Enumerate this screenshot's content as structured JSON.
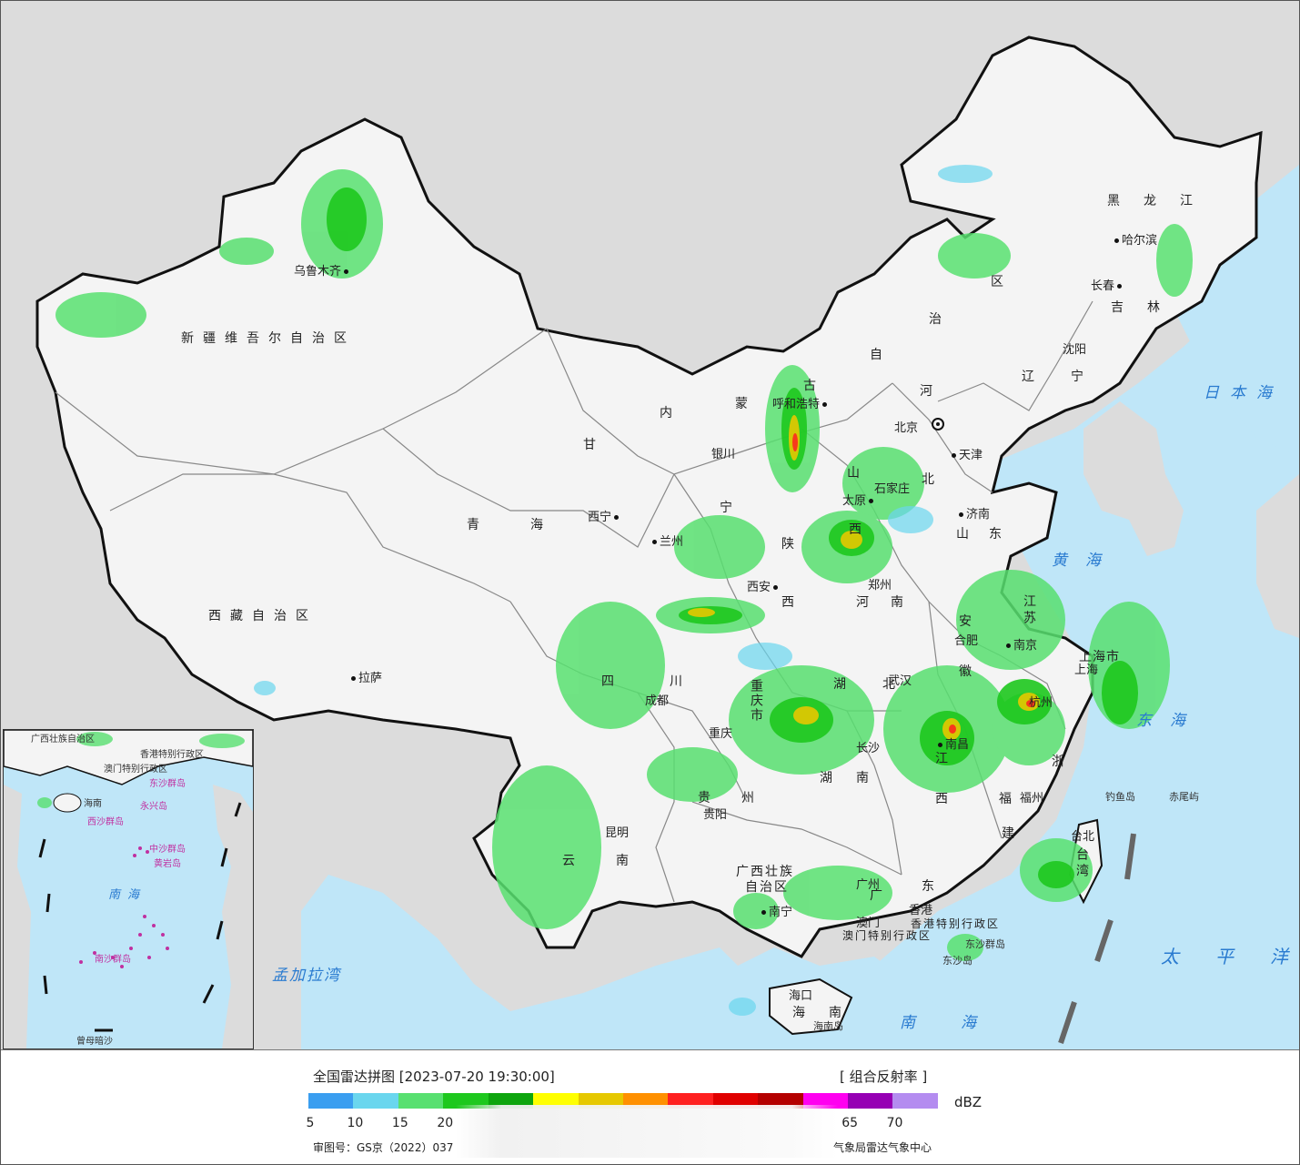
{
  "map": {
    "provinces": [
      {
        "name": "新疆维吾尔自治区",
        "key": "xinjiang"
      },
      {
        "name": "西藏自治区",
        "key": "xizang"
      },
      {
        "name": "青海",
        "key": "qinghai"
      },
      {
        "name": "甘",
        "key": "gansu"
      },
      {
        "name": "内",
        "key": "neimeng1"
      },
      {
        "name": "蒙",
        "key": "neimeng2"
      },
      {
        "name": "古",
        "key": "neimeng3"
      },
      {
        "name": "自",
        "key": "neimeng4"
      },
      {
        "name": "治",
        "key": "neimeng5"
      },
      {
        "name": "区",
        "key": "neimeng6"
      },
      {
        "name": "黑龙江",
        "key": "heilongjiang"
      },
      {
        "name": "吉林",
        "key": "jilin"
      },
      {
        "name": "辽宁",
        "key": "liaoning"
      },
      {
        "name": "河",
        "key": "hebei1"
      },
      {
        "name": "北",
        "key": "hebei2"
      },
      {
        "name": "山",
        "key": "shanxi1"
      },
      {
        "name": "西",
        "key": "shanxi2"
      },
      {
        "name": "山东",
        "key": "shandong"
      },
      {
        "name": "陕",
        "key": "shaanxi1"
      },
      {
        "name": "西",
        "key": "shaanxi2"
      },
      {
        "name": "河南",
        "key": "henan"
      },
      {
        "name": "江苏",
        "key": "jiangsu"
      },
      {
        "name": "安",
        "key": "anhui1"
      },
      {
        "name": "徽",
        "key": "anhui2"
      },
      {
        "name": "湖北",
        "key": "hubei"
      },
      {
        "name": "四",
        "key": "sichuan1"
      },
      {
        "name": "川",
        "key": "sichuan2"
      },
      {
        "name": "重庆市",
        "key": "chongqing"
      },
      {
        "name": "贵州",
        "key": "guizhou"
      },
      {
        "name": "湖",
        "key": "hunan1"
      },
      {
        "name": "南",
        "key": "hunan2"
      },
      {
        "name": "江",
        "key": "jiangxi1"
      },
      {
        "name": "西",
        "key": "jiangxi2"
      },
      {
        "name": "浙",
        "key": "zhejiang"
      },
      {
        "name": "福",
        "key": "fujian1"
      },
      {
        "name": "建",
        "key": "fujian2"
      },
      {
        "name": "台湾",
        "key": "taiwan"
      },
      {
        "name": "云",
        "key": "yunnan1"
      },
      {
        "name": "南",
        "key": "yunnan2"
      },
      {
        "name": "广西壮族",
        "key": "guangxi1"
      },
      {
        "name": "自治区",
        "key": "guangxi2"
      },
      {
        "name": "广",
        "key": "guangdong1"
      },
      {
        "name": "东",
        "key": "guangdong2"
      },
      {
        "name": "海",
        "key": "hainan1"
      },
      {
        "name": "南",
        "key": "hainan2"
      },
      {
        "name": "宁",
        "key": "ningxia"
      },
      {
        "name": "上海市",
        "key": "shanghai"
      }
    ],
    "cities": [
      {
        "name": "乌鲁木齐"
      },
      {
        "name": "拉萨"
      },
      {
        "name": "西宁"
      },
      {
        "name": "兰州"
      },
      {
        "name": "银川"
      },
      {
        "name": "呼和浩特"
      },
      {
        "name": "北京"
      },
      {
        "name": "天津"
      },
      {
        "name": "石家庄"
      },
      {
        "name": "太原"
      },
      {
        "name": "济南"
      },
      {
        "name": "郑州"
      },
      {
        "name": "西安"
      },
      {
        "name": "合肥"
      },
      {
        "name": "南京"
      },
      {
        "name": "上海"
      },
      {
        "name": "杭州"
      },
      {
        "name": "武汉"
      },
      {
        "name": "成都"
      },
      {
        "name": "重庆"
      },
      {
        "name": "贵阳"
      },
      {
        "name": "长沙"
      },
      {
        "name": "南昌"
      },
      {
        "name": "福州"
      },
      {
        "name": "昆明"
      },
      {
        "name": "南宁"
      },
      {
        "name": "广州"
      },
      {
        "name": "香港"
      },
      {
        "name": "澳门"
      },
      {
        "name": "海口"
      },
      {
        "name": "台北"
      },
      {
        "name": "哈尔滨"
      },
      {
        "name": "长春"
      },
      {
        "name": "沈阳"
      }
    ],
    "seas": [
      "日本海",
      "黄海",
      "东海",
      "南海",
      "太平洋",
      "孟加拉湾"
    ],
    "islands": [
      "钓鱼岛",
      "赤尾屿",
      "东沙群岛",
      "东沙岛",
      "海南岛"
    ],
    "sar_labels": [
      "香港特别行政区",
      "澳门特别行政区"
    ]
  },
  "inset": {
    "labels": [
      "广西壮族自治区",
      "香港特别行政区",
      "澳门特别行政区",
      "海南",
      "南海",
      "西沙群岛",
      "中沙群岛",
      "黄岩岛",
      "南沙群岛",
      "曾母暗沙",
      "东沙群岛",
      "永兴岛"
    ],
    "sea": "南海"
  },
  "legend": {
    "title": "全国雷达拼图 [2023-07-20 19:30:00]",
    "product": "[ 组合反射率 ]",
    "unit": "dBZ",
    "ticks": [
      "5",
      "10",
      "15",
      "20",
      "65",
      "70"
    ],
    "colors": [
      "#3a9ef0",
      "#6ad6ee",
      "#58e070",
      "#1ec81e",
      "#0ea50e",
      "#ffff00",
      "#e6c800",
      "#ff9000",
      "#ff2020",
      "#e00000",
      "#b40000",
      "#ff00f0",
      "#9600b4",
      "#b48cf0"
    ],
    "notice": "审图号：GS京（2022）037",
    "source": "气象局雷达气象中心"
  },
  "chart_data": {
    "type": "heatmap",
    "title": "全国雷达拼图 [2023-07-20 19:30:00]",
    "product": "组合反射率",
    "unit": "dBZ",
    "scale_ticks": [
      5,
      10,
      15,
      20,
      65,
      70
    ]
  }
}
